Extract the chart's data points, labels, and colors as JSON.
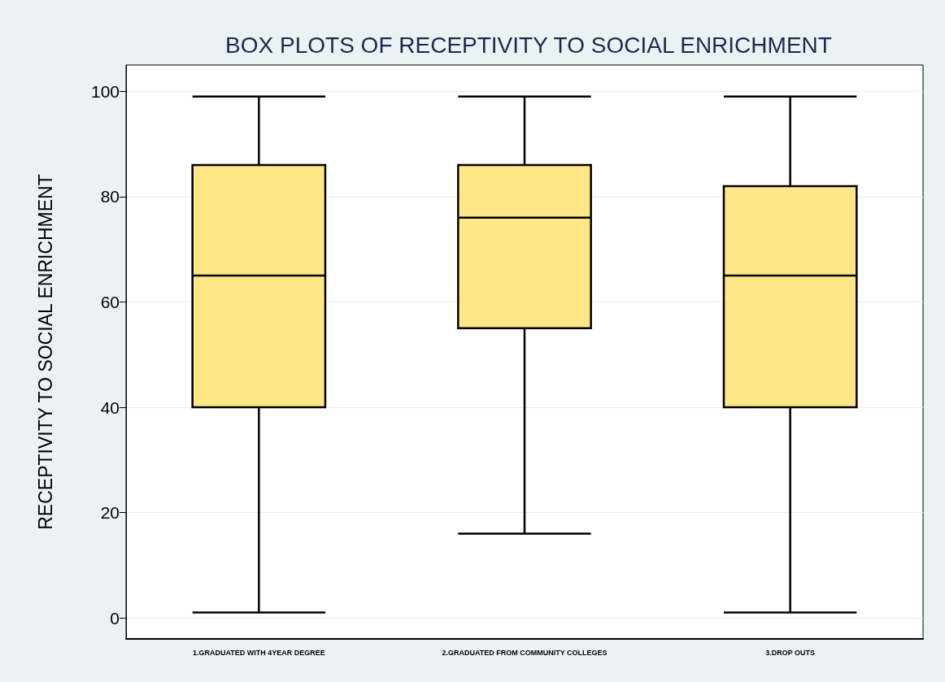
{
  "chart_data": {
    "type": "box",
    "title": "BOX PLOTS OF RECEPTIVITY TO SOCIAL ENRICHMENT",
    "ylabel": "RECEPTIVITY TO SOCIAL ENRICHMENT",
    "categories": [
      "1.GRADUATED WITH 4YEAR DEGREE",
      "2.GRADUATED FROM COMMUNITY COLLEGES",
      "3.DROP OUTS"
    ],
    "series": [
      {
        "color": "#ffe687",
        "boxes": [
          {
            "low": 1,
            "q1": 40,
            "median": 65,
            "q3": 86,
            "high": 99
          },
          {
            "low": 16,
            "q1": 55,
            "median": 76,
            "q3": 86,
            "high": 99
          },
          {
            "low": 1,
            "q1": 40,
            "median": 65,
            "q3": 82,
            "high": 99
          }
        ]
      }
    ],
    "ylim": [
      -4,
      105
    ],
    "yticks": [
      0,
      20,
      40,
      60,
      80,
      100
    ],
    "grid": "y"
  }
}
